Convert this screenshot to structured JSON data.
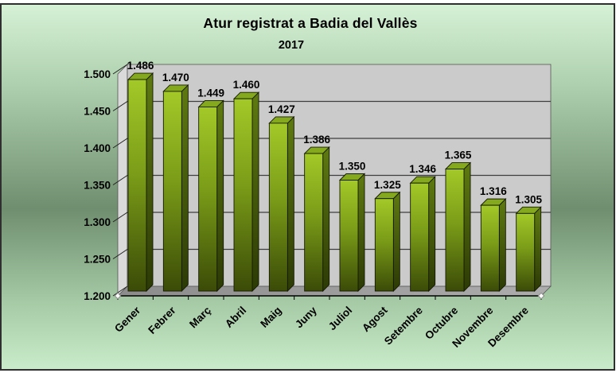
{
  "chart_data": {
    "type": "bar",
    "projection": "3d",
    "title": "Atur registrat a Badia del Vallès",
    "subtitle": "2017",
    "categories": [
      "Gener",
      "Febrer",
      "Març",
      "Abril",
      "Maig",
      "Juny",
      "Juliol",
      "Agost",
      "Setembre",
      "Octubre",
      "Novembre",
      "Desembre"
    ],
    "values": [
      1486,
      1470,
      1449,
      1460,
      1427,
      1386,
      1350,
      1325,
      1346,
      1365,
      1316,
      1305
    ],
    "value_labels": [
      "1.486",
      "1.470",
      "1.449",
      "1.460",
      "1.427",
      "1.386",
      "1.350",
      "1.325",
      "1.346",
      "1.365",
      "1.316",
      "1.305"
    ],
    "xlabel": "",
    "ylabel": "",
    "ylim": [
      1200,
      1500
    ],
    "y_ticks": [
      1200,
      1250,
      1300,
      1350,
      1400,
      1450,
      1500
    ],
    "y_tick_labels": [
      "1.200",
      "1.250",
      "1.300",
      "1.350",
      "1.400",
      "1.450",
      "1.500"
    ],
    "grid": true,
    "legend": "none",
    "x_tick_rotation_deg": 45
  },
  "colors": {
    "bar_top": "#a3c928",
    "bar_mid": "#7a9c18",
    "bar_bottom": "#3b4b07",
    "bar_side_top": "#5f7a11",
    "bar_side_bottom": "#2c3a05",
    "bar_cap": "#84a91e",
    "outline": "#141a00",
    "wall": "#cbcbcb",
    "left_wall": "#dadada",
    "floor_dark": "#8c8c8c",
    "floor_light": "#adadad",
    "gridline": "#3f3f3f",
    "bg_light": "#d6f1d6",
    "bg_dark": "#6f8e6f",
    "frame_border": "#2f2f2f",
    "text": "#000000"
  }
}
